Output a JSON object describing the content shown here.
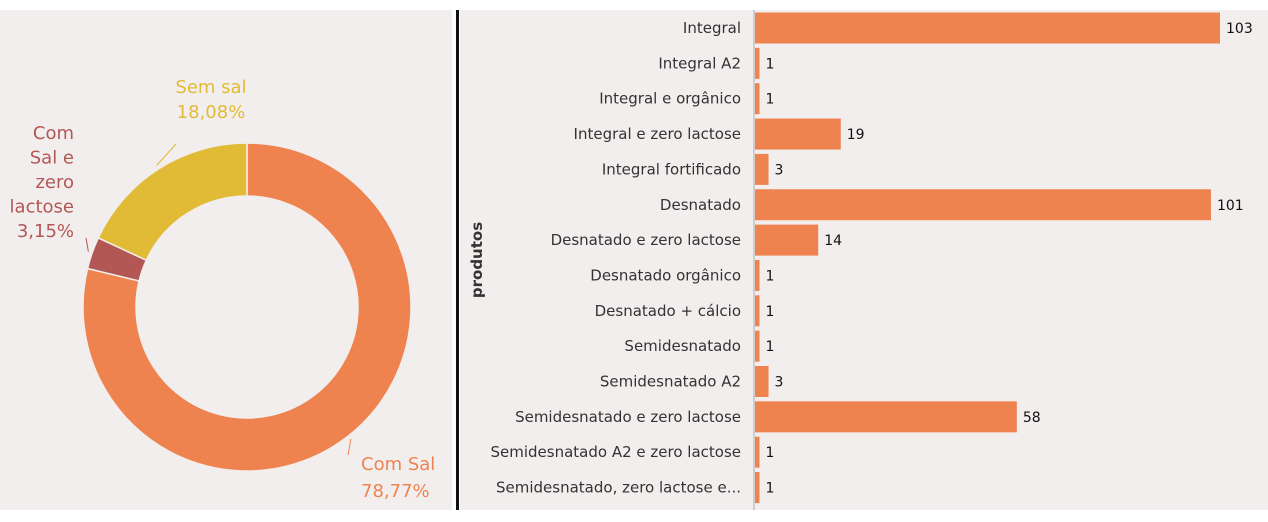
{
  "chart_data": [
    {
      "type": "pie",
      "variant": "donut",
      "slices": [
        {
          "label": "Com Sal",
          "pct_text": "78,77%",
          "value": 78.77,
          "color": "#ee834f"
        },
        {
          "label": "Com Sal e zero lactose",
          "label_lines": [
            "Com",
            "Sal e",
            "zero",
            "lactose"
          ],
          "pct_text": "3,15%",
          "value": 3.15,
          "color": "#b35755"
        },
        {
          "label": "Sem sal",
          "pct_text": "18,08%",
          "value": 18.08,
          "color": "#e2bb36"
        }
      ]
    },
    {
      "type": "bar",
      "orientation": "horizontal",
      "ylabel": "produtos",
      "xlim": [
        0,
        103
      ],
      "color": "#ee834f",
      "categories": [
        "Integral",
        "Integral A2",
        "Integral e orgânico",
        "Integral e zero lactose",
        "Integral fortificado",
        "Desnatado",
        "Desnatado e zero lactose",
        "Desnatado orgânico",
        "Desnatado + cálcio",
        "Semidesnatado",
        "Semidesnatado A2",
        "Semidesnatado e zero lactose",
        "Semidesnatado A2 e zero lactose",
        "Semidesnatado, zero lactose e..."
      ],
      "values": [
        103,
        1,
        1,
        19,
        3,
        101,
        14,
        1,
        1,
        1,
        3,
        58,
        1,
        1
      ]
    }
  ]
}
